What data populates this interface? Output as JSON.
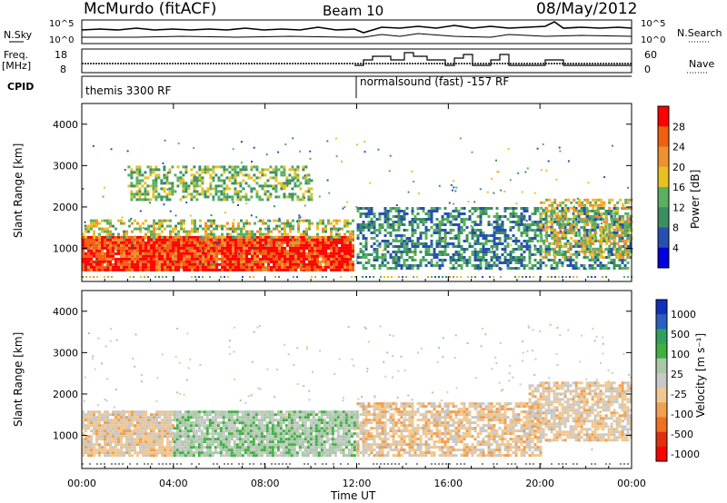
{
  "header": {
    "site": "McMurdo (fitACF)",
    "beam": "Beam 10",
    "date": "08/May/2012"
  },
  "strip_panels": {
    "nsky_label": "N.Sky",
    "nsearch_label": "N.Search",
    "nsky_ticks": [
      "10^5",
      "10^0"
    ],
    "nsearch_ticks": [
      "10^5",
      "10^0"
    ],
    "freq_label_line1": "Freq.",
    "freq_label_line2": "[MHz]",
    "freq_ticks": [
      "18",
      "8"
    ],
    "nave_label": "Nave",
    "nave_ticks": [
      "60",
      "0"
    ],
    "cpid_label": "CPID",
    "cpid_mode_1": "themis 3300 RF",
    "cpid_mode_2": "normalsound (fast) -157 RF"
  },
  "colors": {
    "power_scale": [
      "#0000e0",
      "#2850b0",
      "#3a9060",
      "#5ab060",
      "#e8c020",
      "#f09030",
      "#f06010",
      "#ff0000"
    ],
    "velocity_scale": [
      "#ff0000",
      "#e03010",
      "#f07020",
      "#f0a050",
      "#f0c890",
      "#c8c8c8",
      "#a8c8a8",
      "#40b040",
      "#30a060",
      "#2860c0",
      "#1030c0"
    ]
  },
  "chart_data": [
    {
      "type": "heatmap",
      "title": "Power",
      "ylabel": "Slant Range [km]",
      "ylim": [
        200,
        4500
      ],
      "yticks": [
        "4000",
        "3000",
        "2000",
        "1000"
      ],
      "xlabel": "Time UT",
      "xlim": [
        "00:00",
        "24:00"
      ],
      "xticks": [
        "00:00",
        "04:00",
        "08:00",
        "12:00",
        "16:00",
        "20:00",
        "00:00"
      ],
      "colorbar_label": "Power [dB]",
      "colorbar_ticks": [
        "28",
        "24",
        "20",
        "16",
        "12",
        "8",
        "4"
      ],
      "colorbar_range": [
        0,
        32
      ],
      "features": [
        {
          "t_start": 0.0,
          "t_end": 11.9,
          "range_low": 500,
          "range_high": 1300,
          "power": 28
        },
        {
          "t_start": 0.0,
          "t_end": 11.9,
          "range_low": 1300,
          "range_high": 1700,
          "power": 16
        },
        {
          "t_start": 2.0,
          "t_end": 10.0,
          "range_low": 2200,
          "range_high": 3000,
          "power": 14
        },
        {
          "t_start": 12.0,
          "t_end": 24.0,
          "range_low": 500,
          "range_high": 2000,
          "power": 10
        },
        {
          "t_start": 20.0,
          "t_end": 24.0,
          "range_low": 800,
          "range_high": 2200,
          "power": 18
        }
      ]
    },
    {
      "type": "heatmap",
      "title": "Velocity",
      "ylabel": "Slant Range [km]",
      "ylim": [
        200,
        4500
      ],
      "yticks": [
        "4000",
        "3000",
        "2000",
        "1000"
      ],
      "xlabel": "Time UT",
      "xlim": [
        "00:00",
        "24:00"
      ],
      "xticks": [
        "00:00",
        "04:00",
        "08:00",
        "12:00",
        "16:00",
        "20:00",
        "00:00"
      ],
      "colorbar_label": "Velocity [m s⁻¹]",
      "colorbar_ticks": [
        "1000",
        "500",
        "100",
        "25",
        "-25",
        "-100",
        "-500",
        "-1000"
      ],
      "colorbar_range": [
        -1200,
        1200
      ],
      "features": [
        {
          "t_start": 0.0,
          "t_end": 4.0,
          "range_low": 500,
          "range_high": 1600,
          "velocity": -150
        },
        {
          "t_start": 4.0,
          "t_end": 12.0,
          "range_low": 500,
          "range_high": 1600,
          "velocity": 200
        },
        {
          "t_start": 12.0,
          "t_end": 20.0,
          "range_low": 500,
          "range_high": 1800,
          "velocity": -200
        },
        {
          "t_start": 19.5,
          "t_end": 24.0,
          "range_low": 900,
          "range_high": 2300,
          "velocity": -150
        }
      ]
    }
  ]
}
